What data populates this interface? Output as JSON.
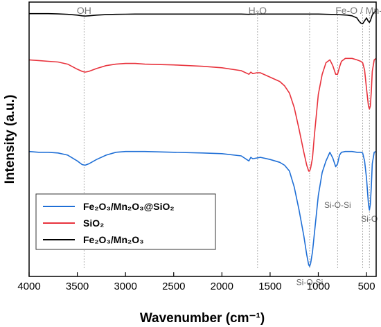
{
  "chart_data": {
    "type": "line",
    "xlabel": "Wavenumber (cm⁻¹)",
    "ylabel": "Intensity (a.u.)",
    "xlim": [
      4000,
      400
    ],
    "x_ticks": [
      "4000",
      "3500",
      "3000",
      "2500",
      "2000",
      "1500",
      "1000",
      "500"
    ],
    "y_ticks_visible": false,
    "grid": false,
    "legend_position": "bottom-left",
    "vertical_guides": [
      3430,
      1630,
      1090,
      800,
      540,
      470
    ],
    "annotations": {
      "top": [
        {
          "text": "OH",
          "x": 3430
        },
        {
          "text": "H₂O",
          "x": 1630
        },
        {
          "text": "Fe-O / Mn-O",
          "x": 540
        }
      ],
      "peaks": [
        {
          "text": "Si-O-Si",
          "x": 800,
          "y": 0.275
        },
        {
          "text": "Si-O",
          "x": 470,
          "y": 0.18
        },
        {
          "text": "Si-O-Si",
          "x": 1090,
          "y": -0.26
        }
      ]
    },
    "series": [
      {
        "name": "Fe₂O₃/Mn₂O₃@SiO₂",
        "color": "#1f6fd6",
        "x": [
          4000,
          3900,
          3800,
          3700,
          3600,
          3500,
          3450,
          3420,
          3380,
          3300,
          3200,
          3100,
          3000,
          2900,
          2800,
          2500,
          2200,
          2000,
          1800,
          1720,
          1700,
          1680,
          1640,
          1600,
          1500,
          1400,
          1350,
          1300,
          1250,
          1200,
          1150,
          1120,
          1100,
          1090,
          1080,
          1060,
          1040,
          1000,
          960,
          920,
          880,
          850,
          820,
          800,
          780,
          760,
          720,
          650,
          600,
          560,
          540,
          520,
          500,
          480,
          470,
          460,
          450,
          440,
          420,
          400
        ],
        "y": [
          0.665,
          0.66,
          0.66,
          0.655,
          0.64,
          0.6,
          0.575,
          0.57,
          0.58,
          0.61,
          0.64,
          0.66,
          0.665,
          0.665,
          0.665,
          0.66,
          0.655,
          0.65,
          0.635,
          0.6,
          0.625,
          0.615,
          0.62,
          0.625,
          0.61,
          0.59,
          0.57,
          0.53,
          0.42,
          0.26,
          0.08,
          -0.05,
          -0.12,
          -0.13,
          -0.11,
          -0.03,
          0.1,
          0.36,
          0.52,
          0.6,
          0.66,
          0.62,
          0.56,
          0.58,
          0.64,
          0.66,
          0.665,
          0.665,
          0.66,
          0.66,
          0.655,
          0.6,
          0.48,
          0.3,
          0.26,
          0.3,
          0.42,
          0.58,
          0.66,
          0.665
        ]
      },
      {
        "name": "SiO₂",
        "color": "#e8323c",
        "x": [
          4000,
          3900,
          3800,
          3700,
          3600,
          3500,
          3450,
          3420,
          3380,
          3300,
          3200,
          3100,
          3000,
          2900,
          2800,
          2500,
          2200,
          2000,
          1800,
          1720,
          1700,
          1680,
          1640,
          1600,
          1500,
          1400,
          1350,
          1300,
          1250,
          1200,
          1150,
          1120,
          1100,
          1090,
          1080,
          1060,
          1040,
          1000,
          960,
          920,
          880,
          850,
          820,
          800,
          780,
          760,
          720,
          650,
          600,
          560,
          540,
          520,
          500,
          480,
          470,
          460,
          450,
          440,
          420,
          400
        ],
        "y": [
          1.3,
          1.295,
          1.29,
          1.285,
          1.27,
          1.235,
          1.22,
          1.215,
          1.22,
          1.24,
          1.26,
          1.27,
          1.275,
          1.275,
          1.27,
          1.265,
          1.255,
          1.245,
          1.225,
          1.2,
          1.215,
          1.205,
          1.21,
          1.21,
          1.18,
          1.15,
          1.12,
          1.07,
          0.97,
          0.82,
          0.66,
          0.57,
          0.53,
          0.53,
          0.55,
          0.62,
          0.78,
          1.06,
          1.2,
          1.28,
          1.3,
          1.26,
          1.2,
          1.2,
          1.25,
          1.29,
          1.31,
          1.31,
          1.3,
          1.29,
          1.28,
          1.23,
          1.1,
          0.98,
          0.96,
          0.98,
          1.08,
          1.22,
          1.3,
          1.31
        ]
      },
      {
        "name": "Fe₂O₃/Mn₂O₃",
        "color": "#000000",
        "x": [
          4000,
          3900,
          3800,
          3700,
          3600,
          3500,
          3450,
          3420,
          3380,
          3300,
          3200,
          3100,
          3000,
          2900,
          2800,
          2500,
          2200,
          2000,
          1800,
          1720,
          1700,
          1680,
          1640,
          1600,
          1500,
          1400,
          1300,
          1200,
          1100,
          1000,
          900,
          800,
          700,
          650,
          600,
          580,
          560,
          540,
          520,
          500,
          480,
          470,
          460,
          450,
          440,
          420,
          400
        ],
        "y": [
          1.62,
          1.62,
          1.62,
          1.618,
          1.615,
          1.61,
          1.605,
          1.603,
          1.605,
          1.61,
          1.613,
          1.615,
          1.616,
          1.617,
          1.617,
          1.617,
          1.617,
          1.617,
          1.617,
          1.615,
          1.617,
          1.616,
          1.617,
          1.617,
          1.617,
          1.617,
          1.617,
          1.617,
          1.617,
          1.617,
          1.615,
          1.613,
          1.61,
          1.605,
          1.59,
          1.57,
          1.555,
          1.55,
          1.57,
          1.59,
          1.565,
          1.56,
          1.57,
          1.59,
          1.61,
          1.63,
          1.64
        ]
      }
    ]
  }
}
